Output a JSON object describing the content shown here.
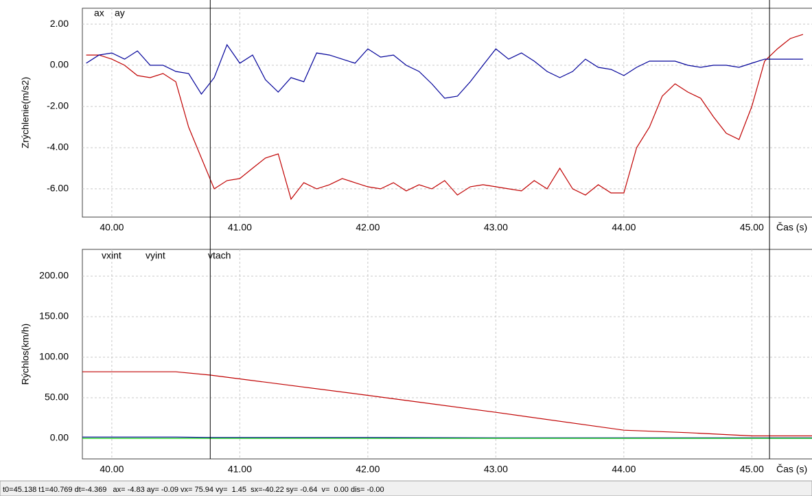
{
  "chart_data": [
    {
      "type": "line",
      "ylabel": "Zrýchlenie(m/s2)",
      "xlabel": "Čas (s)",
      "x": [
        39.8,
        39.9,
        40.0,
        40.1,
        40.2,
        40.3,
        40.4,
        40.5,
        40.6,
        40.7,
        40.8,
        40.9,
        41.0,
        41.1,
        41.2,
        41.3,
        41.4,
        41.5,
        41.6,
        41.7,
        41.8,
        41.9,
        42.0,
        42.1,
        42.2,
        42.3,
        42.4,
        42.5,
        42.6,
        42.7,
        42.8,
        42.9,
        43.0,
        43.1,
        43.2,
        43.3,
        43.4,
        43.5,
        43.6,
        43.7,
        43.8,
        43.9,
        44.0,
        44.1,
        44.2,
        44.3,
        44.4,
        44.5,
        44.6,
        44.7,
        44.8,
        44.9,
        45.0,
        45.1,
        45.2,
        45.3,
        45.4
      ],
      "series": [
        {
          "name": "ax",
          "color": "#c00000",
          "values": [
            0.5,
            0.5,
            0.3,
            0.0,
            -0.5,
            -0.6,
            -0.4,
            -0.8,
            -3.0,
            -4.5,
            -6.0,
            -5.6,
            -5.5,
            -5.0,
            -4.5,
            -4.3,
            -6.5,
            -5.7,
            -6.0,
            -5.8,
            -5.5,
            -5.7,
            -5.9,
            -6.0,
            -5.7,
            -6.1,
            -5.8,
            -6.0,
            -5.6,
            -6.3,
            -5.9,
            -5.8,
            -5.9,
            -6.0,
            -6.1,
            -5.6,
            -6.0,
            -5.0,
            -6.0,
            -6.3,
            -5.8,
            -6.2,
            -6.2,
            -4.0,
            -3.0,
            -1.5,
            -0.9,
            -1.3,
            -1.6,
            -2.5,
            -3.3,
            -3.6,
            -2.0,
            0.2,
            0.8,
            1.3,
            1.5
          ]
        },
        {
          "name": "ay",
          "color": "#000099",
          "values": [
            0.1,
            0.5,
            0.6,
            0.3,
            0.7,
            0.0,
            0.0,
            -0.3,
            -0.4,
            -1.4,
            -0.6,
            1.0,
            0.1,
            0.5,
            -0.7,
            -1.3,
            -0.6,
            -0.8,
            0.6,
            0.5,
            0.3,
            0.1,
            0.8,
            0.4,
            0.5,
            0.0,
            -0.3,
            -0.9,
            -1.6,
            -1.5,
            -0.8,
            0.0,
            0.8,
            0.3,
            0.6,
            0.2,
            -0.3,
            -0.6,
            -0.3,
            0.3,
            -0.1,
            -0.2,
            -0.5,
            -0.1,
            0.2,
            0.2,
            0.2,
            0.0,
            -0.1,
            0.0,
            0.0,
            -0.1,
            0.1,
            0.3,
            0.3,
            0.3,
            0.3
          ]
        }
      ],
      "xlim": [
        39.77,
        45.47
      ],
      "xticks": [
        {
          "value": 40,
          "label": "40.00"
        },
        {
          "value": 41,
          "label": "41.00"
        },
        {
          "value": 42,
          "label": "42.00"
        },
        {
          "value": 43,
          "label": "43.00"
        },
        {
          "value": 44,
          "label": "44.00"
        },
        {
          "value": 45,
          "label": "45.00"
        }
      ],
      "ylim": [
        -7.37,
        2.77
      ],
      "yticks": [
        {
          "value": 2,
          "label": "2.00"
        },
        {
          "value": 0,
          "label": "0.00"
        },
        {
          "value": -2,
          "label": "-2.00"
        },
        {
          "value": -4,
          "label": "-4.00"
        },
        {
          "value": -6,
          "label": "-6.00"
        }
      ],
      "cursors": [
        40.769,
        45.138
      ],
      "grid": true
    },
    {
      "type": "line",
      "ylabel": "Rýchlos(km/h)",
      "xlabel": "Čas (s)",
      "x": [
        39.77,
        40.5,
        40.77,
        42.0,
        43.0,
        44.0,
        44.5,
        45.0,
        45.47
      ],
      "series": [
        {
          "name": "vxint",
          "color": "#c00000",
          "values": [
            82,
            82,
            78,
            53,
            32,
            10,
            7,
            3,
            3
          ]
        },
        {
          "name": "vyint",
          "color": "#000099",
          "values": [
            1.5,
            1.5,
            1.0,
            1.0,
            0.5,
            0.5,
            0.5,
            0.5,
            0.5
          ]
        },
        {
          "name": "vtach",
          "color": "#00cc00",
          "values": [
            0,
            0,
            0,
            0,
            0,
            0,
            0,
            0,
            0
          ]
        }
      ],
      "xlim": [
        39.77,
        45.47
      ],
      "xticks": [
        {
          "value": 40,
          "label": "40.00"
        },
        {
          "value": 41,
          "label": "41.00"
        },
        {
          "value": 42,
          "label": "42.00"
        },
        {
          "value": 43,
          "label": "43.00"
        },
        {
          "value": 44,
          "label": "44.00"
        },
        {
          "value": 45,
          "label": "45.00"
        }
      ],
      "ylim": [
        -25.4,
        233
      ],
      "yticks": [
        {
          "value": 200,
          "label": "200.00"
        },
        {
          "value": 150,
          "label": "150.00"
        },
        {
          "value": 100,
          "label": "100.00"
        },
        {
          "value": 50,
          "label": "50.00"
        },
        {
          "value": 0,
          "label": "0.00"
        }
      ],
      "cursors": [
        40.769,
        45.138
      ],
      "grid": true
    }
  ],
  "status_bar": "t0=45.138 t1=40.769 dt=-4.369   ax= -4.83 ay= -0.09 vx= 75.94 vy=  1.45  sx=-40.22 sy= -0.64  v=  0.00 dis= -0.00"
}
